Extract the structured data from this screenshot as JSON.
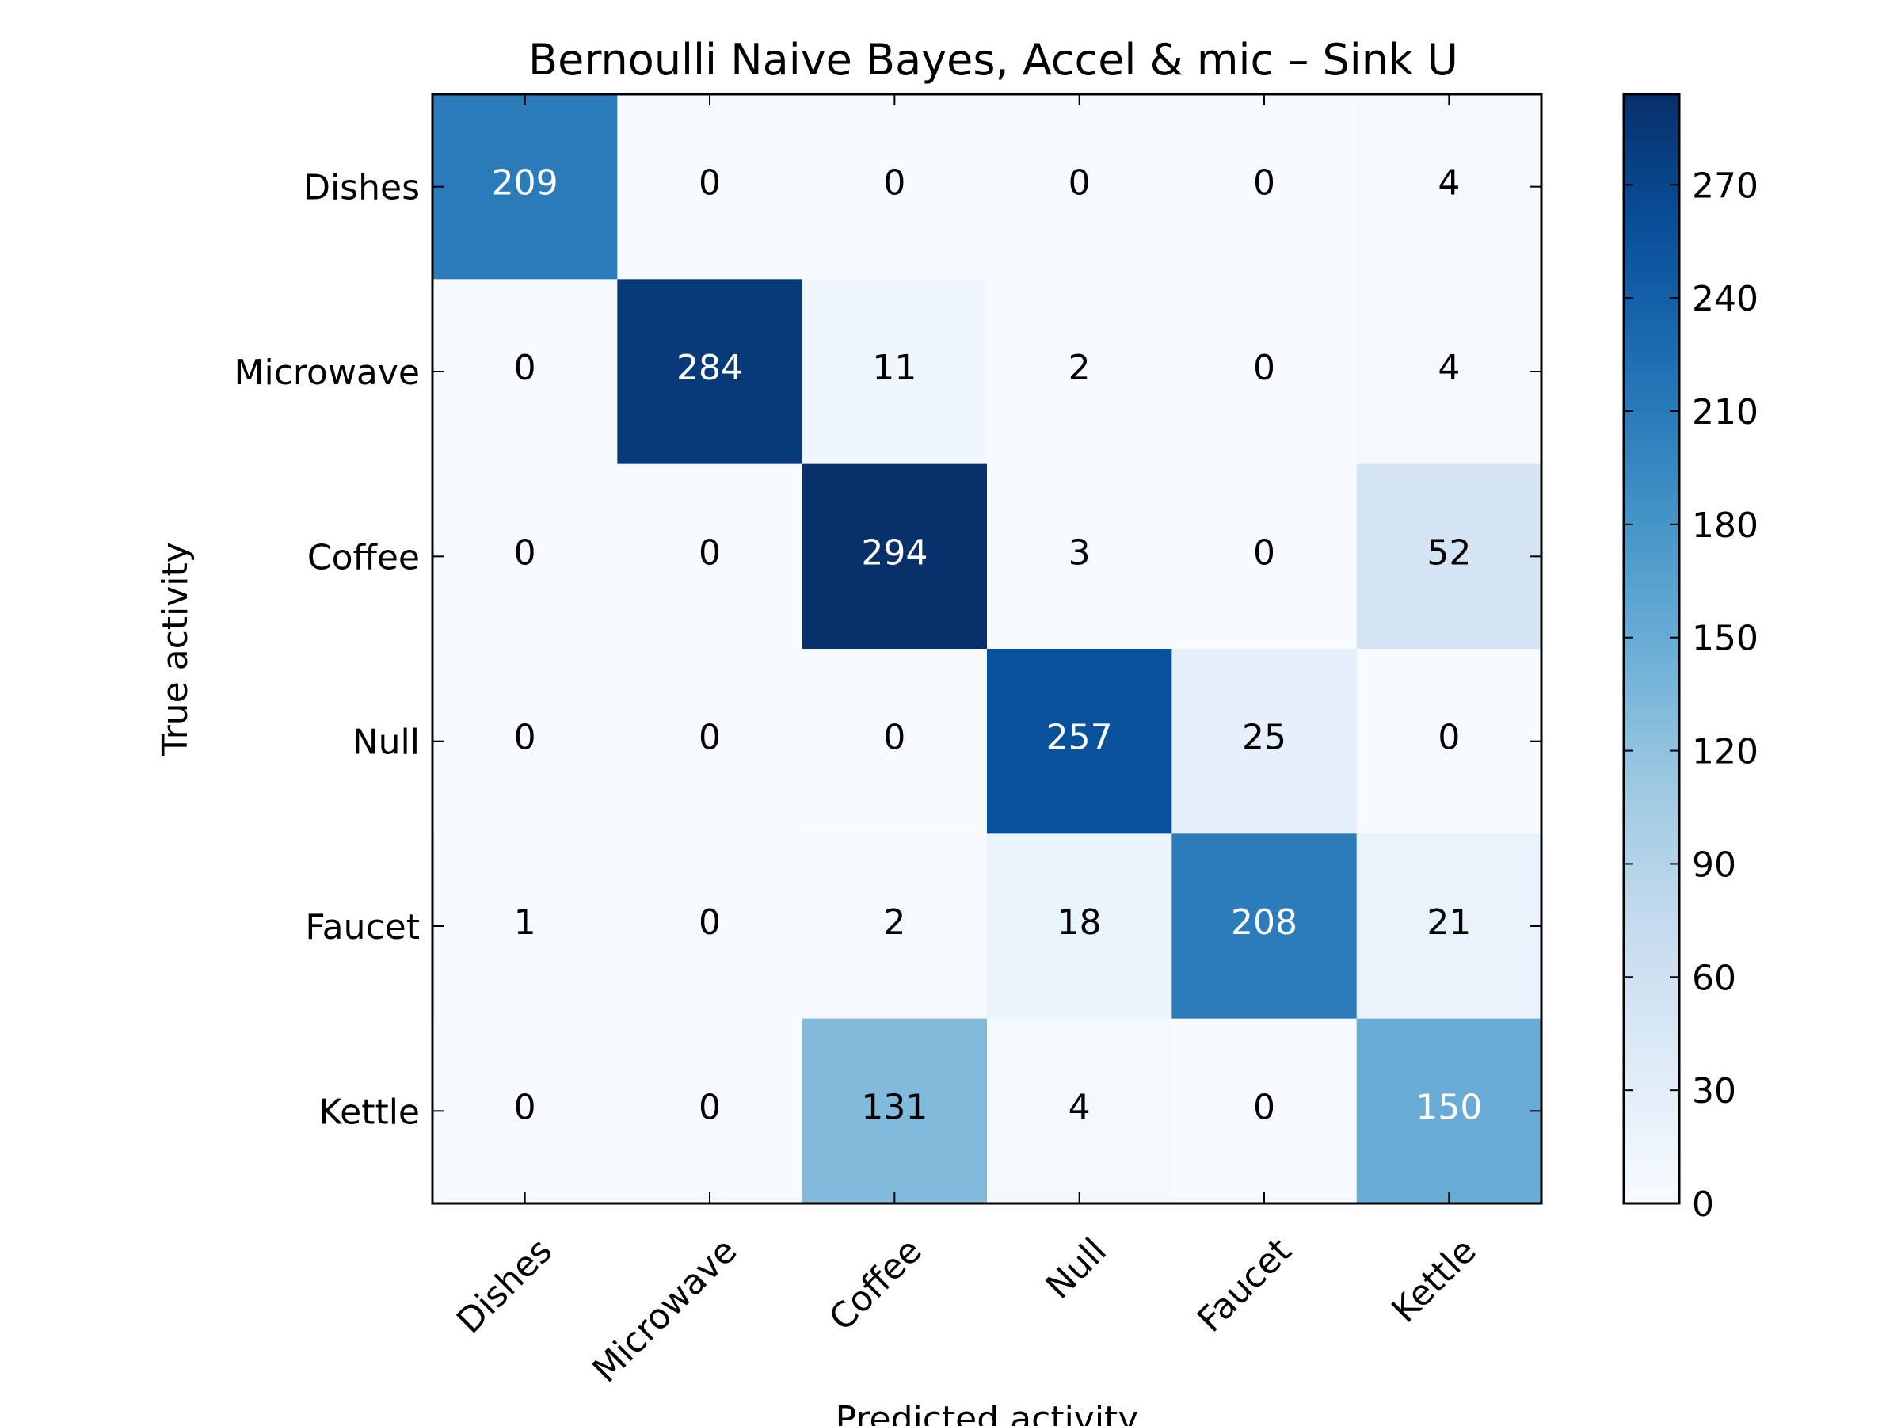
{
  "chart_data": {
    "type": "heatmap",
    "title": "Bernoulli Naive Bayes, Accel & mic – Sink U",
    "xlabel": "Predicted activity",
    "ylabel": "True activity",
    "x_categories": [
      "Dishes",
      "Microwave",
      "Coffee",
      "Null",
      "Faucet",
      "Kettle"
    ],
    "y_categories": [
      "Dishes",
      "Microwave",
      "Coffee",
      "Null",
      "Faucet",
      "Kettle"
    ],
    "values": [
      [
        209,
        0,
        0,
        0,
        0,
        4
      ],
      [
        0,
        284,
        11,
        2,
        0,
        4
      ],
      [
        0,
        0,
        294,
        3,
        0,
        52
      ],
      [
        0,
        0,
        0,
        257,
        25,
        0
      ],
      [
        1,
        0,
        2,
        18,
        208,
        21
      ],
      [
        0,
        0,
        131,
        4,
        0,
        150
      ]
    ],
    "colormap": "Blues",
    "colorbar": {
      "range": [
        0,
        294
      ],
      "ticks": [
        "0",
        "30",
        "60",
        "90",
        "120",
        "150",
        "180",
        "210",
        "240",
        "270"
      ]
    },
    "grid": false
  }
}
